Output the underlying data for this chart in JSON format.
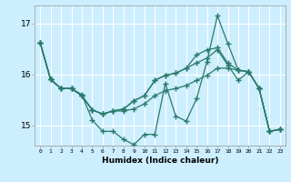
{
  "title": "",
  "xlabel": "Humidex (Indice chaleur)",
  "background_color": "#cceeff",
  "line_color": "#2a7a6a",
  "grid_color": "#ffffff",
  "xlim": [
    -0.5,
    23.5
  ],
  "ylim": [
    14.6,
    17.35
  ],
  "yticks": [
    15,
    16,
    17
  ],
  "xticks": [
    0,
    1,
    2,
    3,
    4,
    5,
    6,
    7,
    8,
    9,
    10,
    11,
    12,
    13,
    14,
    15,
    16,
    17,
    18,
    19,
    20,
    21,
    22,
    23
  ],
  "series": [
    [
      16.62,
      15.9,
      15.72,
      15.72,
      15.6,
      15.1,
      14.88,
      14.88,
      14.72,
      14.62,
      14.82,
      14.82,
      15.82,
      15.18,
      15.08,
      15.52,
      16.25,
      17.15,
      16.6,
      16.08,
      16.05,
      15.72,
      14.88,
      14.92
    ],
    [
      16.62,
      15.9,
      15.72,
      15.72,
      15.58,
      15.3,
      15.22,
      15.28,
      15.28,
      15.32,
      15.42,
      15.58,
      15.68,
      15.72,
      15.78,
      15.88,
      15.98,
      16.12,
      16.12,
      16.08,
      16.05,
      15.72,
      14.88,
      14.92
    ],
    [
      16.62,
      15.9,
      15.72,
      15.72,
      15.58,
      15.3,
      15.22,
      15.28,
      15.32,
      15.48,
      15.58,
      15.88,
      15.98,
      16.02,
      16.12,
      16.38,
      16.48,
      16.52,
      16.22,
      16.08,
      16.05,
      15.72,
      14.88,
      14.92
    ],
    [
      16.62,
      15.9,
      15.72,
      15.72,
      15.58,
      15.3,
      15.22,
      15.28,
      15.32,
      15.48,
      15.58,
      15.88,
      15.98,
      16.02,
      16.12,
      16.22,
      16.32,
      16.48,
      16.18,
      15.88,
      16.05,
      15.72,
      14.88,
      14.92
    ]
  ]
}
